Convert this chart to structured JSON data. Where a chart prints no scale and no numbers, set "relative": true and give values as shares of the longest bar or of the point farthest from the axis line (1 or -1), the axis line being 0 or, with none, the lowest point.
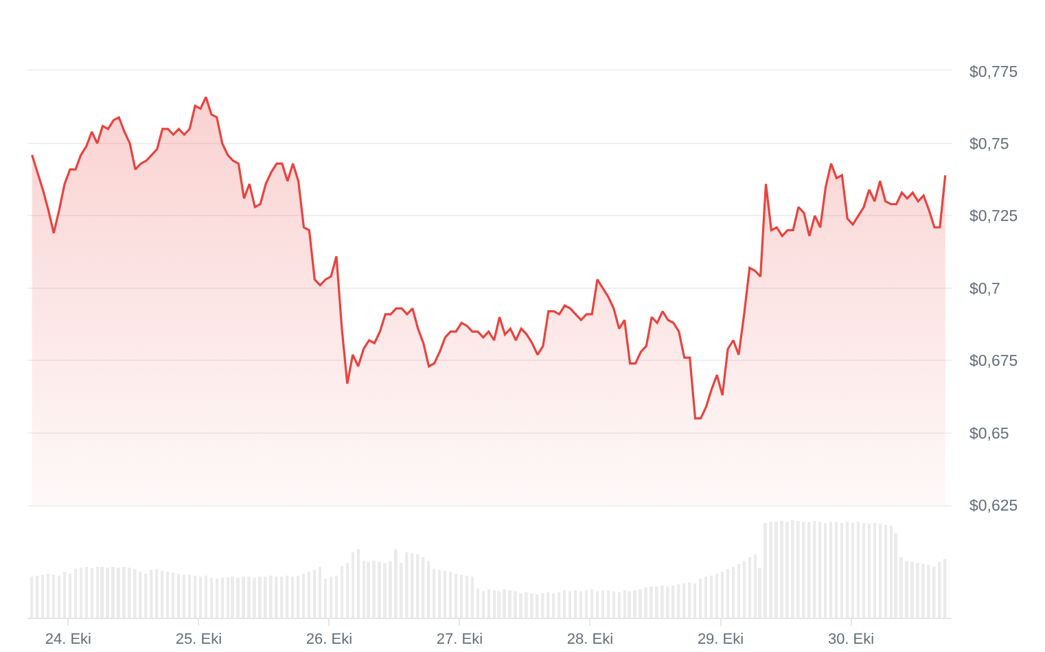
{
  "chart_data": [
    {
      "type": "area",
      "color": "#e8433f",
      "x": [
        "--10-23T17:20",
        "--10-23T18:20",
        "--10-23T19:20",
        "--10-23T20:20",
        "--10-23T21:20",
        "--10-23T22:20",
        "--10-23T23:20",
        "--10-24T00:20",
        "--10-24T01:20",
        "--10-24T02:20",
        "--10-24T03:20",
        "--10-24T04:20",
        "--10-24T05:20",
        "--10-24T06:20",
        "--10-24T07:20",
        "--10-24T08:20",
        "--10-24T09:20",
        "--10-24T10:20",
        "--10-24T11:20",
        "--10-24T12:20",
        "--10-24T13:20",
        "--10-24T14:20",
        "--10-24T15:20",
        "--10-24T16:20",
        "--10-24T17:20",
        "--10-24T18:20",
        "--10-24T19:20",
        "--10-24T20:20",
        "--10-24T21:20",
        "--10-24T22:20",
        "--10-24T23:20",
        "--10-25T00:20",
        "--10-25T01:20",
        "--10-25T02:20",
        "--10-25T03:20",
        "--10-25T04:20",
        "--10-25T05:20",
        "--10-25T06:20",
        "--10-25T07:20",
        "--10-25T08:20",
        "--10-25T09:20",
        "--10-25T10:20",
        "--10-25T11:20",
        "--10-25T12:20",
        "--10-25T13:20",
        "--10-25T14:20",
        "--10-25T15:20",
        "--10-25T16:20",
        "--10-25T17:20",
        "--10-25T18:20",
        "--10-25T19:20",
        "--10-25T20:20",
        "--10-25T21:20",
        "--10-25T22:20",
        "--10-25T23:20",
        "--10-26T00:20",
        "--10-26T01:20",
        "--10-26T02:20",
        "--10-26T03:20",
        "--10-26T04:20",
        "--10-26T05:20",
        "--10-26T06:20",
        "--10-26T07:20",
        "--10-26T08:20",
        "--10-26T09:20",
        "--10-26T10:20",
        "--10-26T11:20",
        "--10-26T12:20",
        "--10-26T13:20",
        "--10-26T14:20",
        "--10-26T15:20",
        "--10-26T16:20",
        "--10-26T17:20",
        "--10-26T18:20",
        "--10-26T19:20",
        "--10-26T20:20",
        "--10-26T21:20",
        "--10-26T22:20",
        "--10-26T23:20",
        "--10-27T00:20",
        "--10-27T01:20",
        "--10-27T02:20",
        "--10-27T03:20",
        "--10-27T04:20",
        "--10-27T05:20",
        "--10-27T06:20",
        "--10-27T07:20",
        "--10-27T08:20",
        "--10-27T09:20",
        "--10-27T10:20",
        "--10-27T11:20",
        "--10-27T12:20",
        "--10-27T13:20",
        "--10-27T14:20",
        "--10-27T15:20",
        "--10-27T16:20",
        "--10-27T17:20",
        "--10-27T18:20",
        "--10-27T19:20",
        "--10-27T20:20",
        "--10-27T21:20",
        "--10-27T22:20",
        "--10-27T23:20",
        "--10-28T00:20",
        "--10-28T01:20",
        "--10-28T02:20",
        "--10-28T03:20",
        "--10-28T04:20",
        "--10-28T05:20",
        "--10-28T06:20",
        "--10-28T07:20",
        "--10-28T08:20",
        "--10-28T09:20",
        "--10-28T10:20",
        "--10-28T11:20",
        "--10-28T12:20",
        "--10-28T13:20",
        "--10-28T14:20",
        "--10-28T15:20",
        "--10-28T16:20",
        "--10-28T17:20",
        "--10-28T18:20",
        "--10-28T19:20",
        "--10-28T20:20",
        "--10-28T21:20",
        "--10-28T22:20",
        "--10-28T23:20",
        "--10-29T00:20",
        "--10-29T01:20",
        "--10-29T02:20",
        "--10-29T03:20",
        "--10-29T04:20",
        "--10-29T05:20",
        "--10-29T06:20",
        "--10-29T07:20",
        "--10-29T08:20",
        "--10-29T09:20",
        "--10-29T10:20",
        "--10-29T11:20",
        "--10-29T12:20",
        "--10-29T13:20",
        "--10-29T14:20",
        "--10-29T15:20",
        "--10-29T16:20",
        "--10-29T17:20",
        "--10-29T18:20",
        "--10-29T19:20",
        "--10-29T20:20",
        "--10-29T21:20",
        "--10-29T22:20",
        "--10-29T23:20",
        "--10-30T00:20",
        "--10-30T01:20",
        "--10-30T02:20",
        "--10-30T03:20",
        "--10-30T04:20",
        "--10-30T05:20",
        "--10-30T06:20",
        "--10-30T07:20",
        "--10-30T08:20",
        "--10-30T09:20",
        "--10-30T10:20",
        "--10-30T11:20",
        "--10-30T12:20",
        "--10-30T13:20",
        "--10-30T14:20",
        "--10-30T15:20",
        "--10-30T16:20",
        "--10-30T17:20"
      ],
      "values": [
        0.746,
        0.74,
        0.734,
        0.727,
        0.719,
        0.727,
        0.736,
        0.741,
        0.741,
        0.746,
        0.749,
        0.754,
        0.75,
        0.756,
        0.755,
        0.758,
        0.759,
        0.754,
        0.75,
        0.741,
        0.743,
        0.744,
        0.746,
        0.748,
        0.755,
        0.755,
        0.753,
        0.755,
        0.753,
        0.755,
        0.763,
        0.762,
        0.766,
        0.76,
        0.759,
        0.75,
        0.746,
        0.744,
        0.743,
        0.731,
        0.736,
        0.728,
        0.729,
        0.736,
        0.74,
        0.743,
        0.743,
        0.737,
        0.743,
        0.737,
        0.721,
        0.72,
        0.703,
        0.701,
        0.703,
        0.704,
        0.711,
        0.686,
        0.667,
        0.677,
        0.673,
        0.679,
        0.682,
        0.681,
        0.685,
        0.691,
        0.691,
        0.693,
        0.693,
        0.691,
        0.693,
        0.686,
        0.681,
        0.673,
        0.674,
        0.678,
        0.683,
        0.685,
        0.685,
        0.688,
        0.687,
        0.685,
        0.685,
        0.683,
        0.685,
        0.682,
        0.69,
        0.684,
        0.686,
        0.682,
        0.686,
        0.684,
        0.681,
        0.677,
        0.68,
        0.692,
        0.692,
        0.691,
        0.694,
        0.693,
        0.691,
        0.689,
        0.691,
        0.691,
        0.703,
        0.7,
        0.697,
        0.693,
        0.686,
        0.689,
        0.674,
        0.674,
        0.678,
        0.68,
        0.69,
        0.688,
        0.692,
        0.689,
        0.688,
        0.685,
        0.676,
        0.676,
        0.655,
        0.655,
        0.659,
        0.665,
        0.67,
        0.663,
        0.679,
        0.682,
        0.677,
        0.691,
        0.707,
        0.706,
        0.704,
        0.736,
        0.72,
        0.721,
        0.718,
        0.72,
        0.72,
        0.728,
        0.726,
        0.718,
        0.725,
        0.721,
        0.735,
        0.743,
        0.738,
        0.739,
        0.724,
        0.722,
        0.725,
        0.728,
        0.734,
        0.73,
        0.737,
        0.73,
        0.729,
        0.729,
        0.733,
        0.731,
        0.733,
        0.73,
        0.732,
        0.727,
        0.721,
        0.721,
        0.739
      ],
      "xlim": [
        "--10-23T16:30",
        "--10-30T18:30"
      ],
      "ylim": [
        0.625,
        0.775
      ],
      "yticks": [
        {
          "value": 0.625,
          "label": "$0,625"
        },
        {
          "value": 0.65,
          "label": "$0,65"
        },
        {
          "value": 0.675,
          "label": "$0,675"
        },
        {
          "value": 0.7,
          "label": "$0,7"
        },
        {
          "value": 0.725,
          "label": "$0,725"
        },
        {
          "value": 0.75,
          "label": "$0,75"
        },
        {
          "value": 0.775,
          "label": "$0,775"
        }
      ],
      "grid": "y",
      "tick_labels": "y"
    },
    {
      "type": "bar",
      "relative": true,
      "color": "#ebebeb",
      "x": [
        "--10-23T17:20",
        "--10-23T18:20",
        "--10-23T19:20",
        "--10-23T20:20",
        "--10-23T21:20",
        "--10-23T22:20",
        "--10-23T23:20",
        "--10-24T00:20",
        "--10-24T01:20",
        "--10-24T02:20",
        "--10-24T03:20",
        "--10-24T04:20",
        "--10-24T05:20",
        "--10-24T06:20",
        "--10-24T07:20",
        "--10-24T08:20",
        "--10-24T09:20",
        "--10-24T10:20",
        "--10-24T11:20",
        "--10-24T12:20",
        "--10-24T13:20",
        "--10-24T14:20",
        "--10-24T15:20",
        "--10-24T16:20",
        "--10-24T17:20",
        "--10-24T18:20",
        "--10-24T19:20",
        "--10-24T20:20",
        "--10-24T21:20",
        "--10-24T22:20",
        "--10-24T23:20",
        "--10-25T00:20",
        "--10-25T01:20",
        "--10-25T02:20",
        "--10-25T03:20",
        "--10-25T04:20",
        "--10-25T05:20",
        "--10-25T06:20",
        "--10-25T07:20",
        "--10-25T08:20",
        "--10-25T09:20",
        "--10-25T10:20",
        "--10-25T11:20",
        "--10-25T12:20",
        "--10-25T13:20",
        "--10-25T14:20",
        "--10-25T15:20",
        "--10-25T16:20",
        "--10-25T17:20",
        "--10-25T18:20",
        "--10-25T19:20",
        "--10-25T20:20",
        "--10-25T21:20",
        "--10-25T22:20",
        "--10-25T23:20",
        "--10-26T00:20",
        "--10-26T01:20",
        "--10-26T02:20",
        "--10-26T03:20",
        "--10-26T04:20",
        "--10-26T05:20",
        "--10-26T06:20",
        "--10-26T07:20",
        "--10-26T08:20",
        "--10-26T09:20",
        "--10-26T10:20",
        "--10-26T11:20",
        "--10-26T12:20",
        "--10-26T13:20",
        "--10-26T14:20",
        "--10-26T15:20",
        "--10-26T16:20",
        "--10-26T17:20",
        "--10-26T18:20",
        "--10-26T19:20",
        "--10-26T20:20",
        "--10-26T21:20",
        "--10-26T22:20",
        "--10-26T23:20",
        "--10-27T00:20",
        "--10-27T01:20",
        "--10-27T02:20",
        "--10-27T03:20",
        "--10-27T04:20",
        "--10-27T05:20",
        "--10-27T06:20",
        "--10-27T07:20",
        "--10-27T08:20",
        "--10-27T09:20",
        "--10-27T10:20",
        "--10-27T11:20",
        "--10-27T12:20",
        "--10-27T13:20",
        "--10-27T14:20",
        "--10-27T15:20",
        "--10-27T16:20",
        "--10-27T17:20",
        "--10-27T18:20",
        "--10-27T19:20",
        "--10-27T20:20",
        "--10-27T21:20",
        "--10-27T22:20",
        "--10-27T23:20",
        "--10-28T00:20",
        "--10-28T01:20",
        "--10-28T02:20",
        "--10-28T03:20",
        "--10-28T04:20",
        "--10-28T05:20",
        "--10-28T06:20",
        "--10-28T07:20",
        "--10-28T08:20",
        "--10-28T09:20",
        "--10-28T10:20",
        "--10-28T11:20",
        "--10-28T12:20",
        "--10-28T13:20",
        "--10-28T14:20",
        "--10-28T15:20",
        "--10-28T16:20",
        "--10-28T17:20",
        "--10-28T18:20",
        "--10-28T19:20",
        "--10-28T20:20",
        "--10-28T21:20",
        "--10-28T22:20",
        "--10-28T23:20",
        "--10-29T00:20",
        "--10-29T01:20",
        "--10-29T02:20",
        "--10-29T03:20",
        "--10-29T04:20",
        "--10-29T05:20",
        "--10-29T06:20",
        "--10-29T07:20",
        "--10-29T08:20",
        "--10-29T09:20",
        "--10-29T10:20",
        "--10-29T11:20",
        "--10-29T12:20",
        "--10-29T13:20",
        "--10-29T14:20",
        "--10-29T15:20",
        "--10-29T16:20",
        "--10-29T17:20",
        "--10-29T18:20",
        "--10-29T19:20",
        "--10-29T20:20",
        "--10-29T21:20",
        "--10-29T22:20",
        "--10-29T23:20",
        "--10-30T00:20",
        "--10-30T01:20",
        "--10-30T02:20",
        "--10-30T03:20",
        "--10-30T04:20",
        "--10-30T05:20",
        "--10-30T06:20",
        "--10-30T07:20",
        "--10-30T08:20",
        "--10-30T09:20",
        "--10-30T10:20",
        "--10-30T11:20",
        "--10-30T12:20",
        "--10-30T13:20",
        "--10-30T14:20",
        "--10-30T15:20",
        "--10-30T16:20",
        "--10-30T17:20"
      ],
      "values": [
        0.42,
        0.43,
        0.44,
        0.45,
        0.44,
        0.43,
        0.47,
        0.45,
        0.5,
        0.51,
        0.52,
        0.51,
        0.52,
        0.52,
        0.51,
        0.52,
        0.51,
        0.52,
        0.51,
        0.5,
        0.47,
        0.45,
        0.49,
        0.5,
        0.48,
        0.47,
        0.46,
        0.45,
        0.44,
        0.44,
        0.43,
        0.42,
        0.43,
        0.41,
        0.4,
        0.41,
        0.41,
        0.42,
        0.41,
        0.42,
        0.42,
        0.41,
        0.42,
        0.42,
        0.43,
        0.42,
        0.42,
        0.43,
        0.42,
        0.43,
        0.45,
        0.47,
        0.49,
        0.52,
        0.4,
        0.42,
        0.43,
        0.53,
        0.56,
        0.67,
        0.7,
        0.58,
        0.57,
        0.58,
        0.57,
        0.56,
        0.58,
        0.7,
        0.56,
        0.67,
        0.66,
        0.65,
        0.62,
        0.58,
        0.5,
        0.49,
        0.48,
        0.47,
        0.45,
        0.44,
        0.43,
        0.42,
        0.3,
        0.27,
        0.29,
        0.28,
        0.27,
        0.29,
        0.28,
        0.27,
        0.25,
        0.26,
        0.25,
        0.24,
        0.25,
        0.26,
        0.25,
        0.26,
        0.28,
        0.27,
        0.28,
        0.27,
        0.28,
        0.29,
        0.27,
        0.28,
        0.28,
        0.27,
        0.26,
        0.28,
        0.27,
        0.28,
        0.29,
        0.31,
        0.32,
        0.32,
        0.33,
        0.32,
        0.33,
        0.34,
        0.35,
        0.36,
        0.35,
        0.4,
        0.42,
        0.43,
        0.45,
        0.47,
        0.5,
        0.52,
        0.55,
        0.58,
        0.62,
        0.65,
        0.51,
        0.97,
        0.98,
        0.98,
        0.99,
        0.98,
        1.0,
        0.99,
        0.98,
        0.98,
        0.99,
        0.98,
        0.97,
        0.98,
        0.98,
        0.97,
        0.98,
        0.97,
        0.98,
        0.97,
        0.96,
        0.97,
        0.96,
        0.95,
        0.94,
        0.86,
        0.62,
        0.58,
        0.57,
        0.56,
        0.55,
        0.54,
        0.52,
        0.57,
        0.6
      ],
      "xlim": [
        "--10-23T16:30",
        "--10-30T18:30"
      ],
      "xticks": [
        {
          "value": "--10-24",
          "label": "24. Eki"
        },
        {
          "value": "--10-25",
          "label": "25. Eki"
        },
        {
          "value": "--10-26",
          "label": "26. Eki"
        },
        {
          "value": "--10-27",
          "label": "27. Eki"
        },
        {
          "value": "--10-28",
          "label": "28. Eki"
        },
        {
          "value": "--10-29",
          "label": "29. Eki"
        },
        {
          "value": "--10-30",
          "label": "30. Eki"
        }
      ],
      "tick_labels": "x"
    }
  ]
}
